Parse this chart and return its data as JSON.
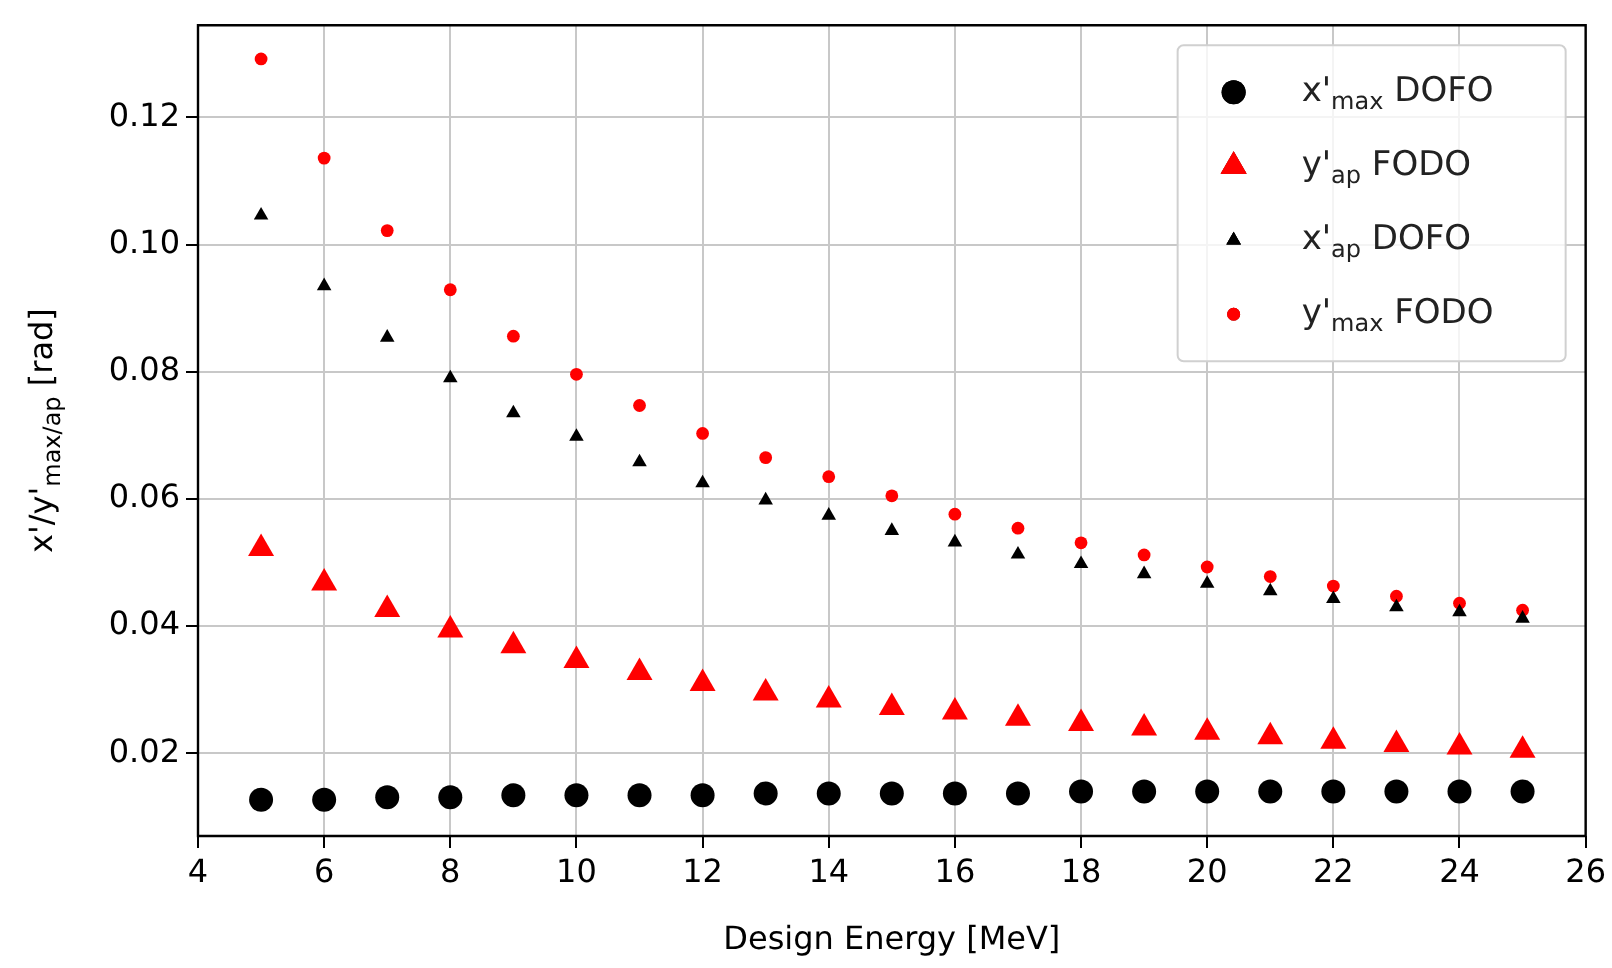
{
  "chart_data": {
    "type": "scatter",
    "xlabel": "Design Energy [MeV]",
    "ylabel": "x'/y'$_{max/ap}$ [rad]",
    "x": [
      5,
      6,
      7,
      8,
      9,
      10,
      11,
      12,
      13,
      14,
      15,
      16,
      17,
      18,
      19,
      20,
      21,
      22,
      23,
      24,
      25
    ],
    "series": [
      {
        "name": "x'$_{max}$ DOFO",
        "color": "#000000",
        "marker": "circle",
        "values": [
          0.0127,
          0.0127,
          0.0131,
          0.0131,
          0.0134,
          0.0134,
          0.0134,
          0.0134,
          0.0137,
          0.0137,
          0.0137,
          0.0137,
          0.0137,
          0.014,
          0.014,
          0.014,
          0.014,
          0.014,
          0.014,
          0.014,
          0.014
        ]
      },
      {
        "name": "y'$_{ap}$ FODO",
        "color": "#ff0000",
        "marker": "triangle",
        "values": [
          0.0522,
          0.0468,
          0.0426,
          0.0394,
          0.0369,
          0.0346,
          0.0327,
          0.031,
          0.0295,
          0.0284,
          0.0272,
          0.0265,
          0.0255,
          0.0247,
          0.024,
          0.0233,
          0.0226,
          0.0219,
          0.0214,
          0.021,
          0.0205
        ]
      },
      {
        "name": "x'$_{ap}$ DOFO",
        "color": "#000000",
        "marker": "triangle",
        "values": [
          0.1046,
          0.0935,
          0.0854,
          0.079,
          0.0735,
          0.0698,
          0.0658,
          0.0625,
          0.0598,
          0.0574,
          0.055,
          0.0532,
          0.0513,
          0.0498,
          0.0482,
          0.0467,
          0.0455,
          0.0443,
          0.043,
          0.0422,
          0.0412
        ]
      },
      {
        "name": "y'$_{max}$ FODO",
        "color": "#ff0000",
        "marker": "circle",
        "values": [
          0.1292,
          0.1136,
          0.1022,
          0.0929,
          0.0856,
          0.0796,
          0.0747,
          0.0703,
          0.0665,
          0.0635,
          0.0605,
          0.0576,
          0.0554,
          0.0531,
          0.0512,
          0.0493,
          0.0478,
          0.0463,
          0.0447,
          0.0436,
          0.0425
        ]
      }
    ],
    "xlim": [
      4,
      26
    ],
    "xticks": [
      4,
      6,
      8,
      10,
      12,
      14,
      16,
      18,
      20,
      22,
      24,
      26
    ],
    "ylim": [
      0.007,
      0.1345
    ],
    "yticks": [
      0.02,
      0.04,
      0.06,
      0.08,
      {
        "value": 0.1,
        "label": "0.10"
      },
      0.12
    ],
    "grid": true,
    "legend": "top right"
  }
}
